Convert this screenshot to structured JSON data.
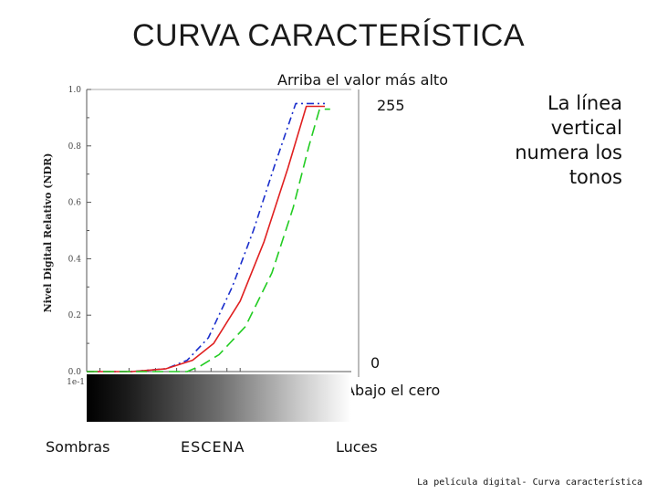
{
  "slide": {
    "title": "CURVA CARACTERÍSTICA",
    "note_top": "Arriba el valor más alto",
    "value_top": "255",
    "value_bottom": "0",
    "note_bottom": "Abajo el cero",
    "side_note": "La línea vertical numera los tonos",
    "label_left": "Sombras",
    "label_center": "ESCENA",
    "label_right": "Luces",
    "footer": "La película digital- Curva característica"
  },
  "chart_data": {
    "type": "line",
    "ylabel": "Nivel Digital Relativo (NDR)",
    "xlabel": "",
    "ylim": [
      0,
      1
    ],
    "y_ticks": [
      "0.0",
      "0.2",
      "0.4",
      "0.6",
      "0.8",
      "1.0"
    ],
    "x_ticks": [
      "1e-1"
    ],
    "grid": false,
    "series": [
      {
        "color": "#1a2ecc",
        "style": "dash-dot",
        "points": [
          [
            0.0,
            0.0
          ],
          [
            0.17,
            0.0
          ],
          [
            0.3,
            0.01
          ],
          [
            0.38,
            0.04
          ],
          [
            0.46,
            0.12
          ],
          [
            0.55,
            0.3
          ],
          [
            0.63,
            0.5
          ],
          [
            0.71,
            0.73
          ],
          [
            0.79,
            0.95
          ],
          [
            0.9,
            0.95
          ]
        ]
      },
      {
        "color": "#e02020",
        "style": "solid",
        "points": [
          [
            0.0,
            0.0
          ],
          [
            0.17,
            0.0
          ],
          [
            0.3,
            0.01
          ],
          [
            0.4,
            0.04
          ],
          [
            0.48,
            0.1
          ],
          [
            0.58,
            0.25
          ],
          [
            0.67,
            0.46
          ],
          [
            0.76,
            0.72
          ],
          [
            0.83,
            0.94
          ],
          [
            0.9,
            0.94
          ]
        ]
      },
      {
        "color": "#22cc22",
        "style": "dashed",
        "points": [
          [
            0.0,
            0.0
          ],
          [
            0.38,
            0.0
          ],
          [
            0.43,
            0.02
          ],
          [
            0.5,
            0.06
          ],
          [
            0.6,
            0.16
          ],
          [
            0.7,
            0.35
          ],
          [
            0.78,
            0.58
          ],
          [
            0.84,
            0.8
          ],
          [
            0.88,
            0.93
          ],
          [
            0.92,
            0.93
          ]
        ]
      }
    ]
  },
  "colors": {
    "text": "#111111",
    "axis": "#555555"
  }
}
